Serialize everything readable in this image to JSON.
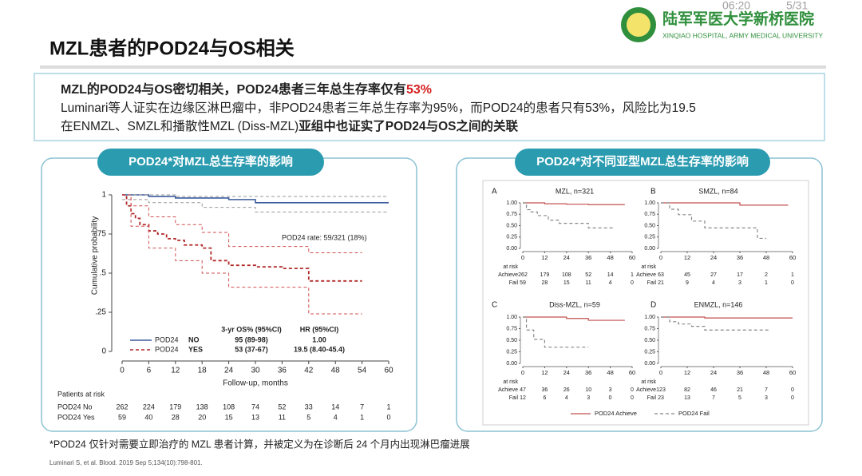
{
  "header": {
    "time": "06:20",
    "page": "5/31",
    "title": "MZL患者的POD24与OS相关",
    "logo_name": "陆军军医大学新桥医院",
    "logo_sub": "XINQIAO HOSPITAL, ARMY MEDICAL UNIVERSITY"
  },
  "summary": {
    "lead": "MZL的POD24与OS密切相关，POD24患者三年总生存率仅有",
    "lead_highlight": "53%",
    "line2": "Luminari等人证实在边缘区淋巴瘤中，非POD24患者三年总生存率为95%，而POD24的患者只有53%，风险比为19.5",
    "line3_a": "在ENMZL、SMZL和播散性MZL (Diss-MZL)",
    "line3_b": "亚组中也证实了POD24与OS之间的关联"
  },
  "left_panel": {
    "title": "POD24*对MZL总生存率的影响",
    "chart": {
      "type": "line",
      "y_label": "Cumulative probability",
      "x_label": "Follow-up, months",
      "annotation": "POD24 rate: 59/321 (18%)",
      "xlim": [
        0,
        60
      ],
      "xticks": [
        0,
        6,
        12,
        18,
        24,
        30,
        36,
        42,
        48,
        54,
        60
      ],
      "ylim": [
        0,
        1
      ],
      "yticks": [
        0,
        {
          "value": 0.25,
          "label": ".25"
        },
        {
          "value": 0.5,
          "label": ".5"
        },
        {
          "value": 0.75,
          "label": ".75"
        },
        1
      ],
      "series": [
        {
          "color": "#3b5b9e",
          "width": 1.6,
          "x": [
            0,
            6,
            6,
            12,
            12,
            24,
            24,
            30,
            30,
            60
          ],
          "y": [
            1,
            1,
            0.99,
            0.99,
            0.98,
            0.98,
            0.97,
            0.97,
            0.95,
            0.95
          ]
        },
        {
          "color": "#999999",
          "dash": true,
          "width": 1,
          "x": [
            0,
            12,
            12,
            60
          ],
          "y": [
            1,
            1,
            0.99,
            0.99
          ]
        },
        {
          "color": "#999999",
          "dash": true,
          "width": 1,
          "x": [
            0,
            6,
            6,
            18,
            18,
            30,
            30,
            60
          ],
          "y": [
            0.97,
            0.97,
            0.95,
            0.95,
            0.92,
            0.92,
            0.89,
            0.89
          ]
        },
        {
          "color": "#b22a2a",
          "dash": true,
          "width": 1.8,
          "x": [
            0,
            1,
            1,
            2,
            2,
            3,
            3,
            4,
            4,
            6,
            6,
            8,
            8,
            10,
            10,
            12,
            12,
            14,
            14,
            18,
            18,
            20,
            20,
            24,
            24,
            30,
            30,
            36,
            36,
            42,
            42,
            54
          ],
          "y": [
            1,
            1,
            0.93,
            0.93,
            0.88,
            0.88,
            0.85,
            0.85,
            0.81,
            0.81,
            0.77,
            0.77,
            0.75,
            0.75,
            0.72,
            0.72,
            0.71,
            0.71,
            0.68,
            0.68,
            0.66,
            0.66,
            0.58,
            0.58,
            0.55,
            0.55,
            0.54,
            0.54,
            0.53,
            0.53,
            0.45,
            0.45
          ]
        },
        {
          "color": "#d05050",
          "dash": true,
          "width": 1,
          "x": [
            0,
            2,
            2,
            6,
            6,
            12,
            12,
            18,
            18,
            24,
            24,
            42,
            42,
            54
          ],
          "y": [
            1,
            1,
            0.93,
            0.93,
            0.86,
            0.86,
            0.81,
            0.81,
            0.76,
            0.76,
            0.67,
            0.67,
            0.63,
            0.63
          ]
        },
        {
          "color": "#d05050",
          "dash": true,
          "width": 1,
          "x": [
            0,
            2,
            2,
            6,
            6,
            12,
            12,
            18,
            18,
            24,
            24,
            42,
            42,
            54
          ],
          "y": [
            1,
            1,
            0.8,
            0.8,
            0.66,
            0.66,
            0.58,
            0.58,
            0.5,
            0.5,
            0.41,
            0.41,
            0.24,
            0.24
          ]
        }
      ],
      "legend": {
        "headers": [
          "3-yr OS% (95%CI)",
          "HR (95%CI)"
        ],
        "rows": [
          {
            "color": "#3b5b9e",
            "dash": false,
            "name": "POD24",
            "group": "NO",
            "os": "95 (89-98)",
            "hr": "1.00"
          },
          {
            "color": "#b22a2a",
            "dash": true,
            "name": "POD24",
            "group": "YES",
            "os": "53 (37-67)",
            "hr": "19.5 (8.40-45.4)"
          }
        ]
      },
      "risk": {
        "title": "Patients at risk",
        "rows": [
          {
            "label": "POD24 No",
            "values": [
              262,
              224,
              179,
              138,
              108,
              74,
              52,
              33,
              14,
              7,
              1
            ]
          },
          {
            "label": "POD24 Yes",
            "values": [
              59,
              40,
              28,
              20,
              15,
              13,
              11,
              5,
              4,
              1,
              0
            ]
          }
        ]
      }
    }
  },
  "right_panel": {
    "title": "POD24*对不同亚型MZL总生存率的影响",
    "xlim": [
      0,
      60
    ],
    "xticks": [
      0,
      12,
      24,
      36,
      48,
      60
    ],
    "ylim": [
      0,
      1
    ],
    "yticks": [
      {
        "value": 0,
        "label": "0.00"
      },
      {
        "value": 0.25,
        "label": "0.25"
      },
      {
        "value": 0.5,
        "label": "0.50"
      },
      {
        "value": 0.75,
        "label": "0.75"
      },
      {
        "value": 1,
        "label": "1.00"
      }
    ],
    "risk_labels": [
      "at risk",
      "Achieve",
      "Fail"
    ],
    "legend": [
      {
        "name": "POD24 Achieve",
        "color": "#c0504d",
        "dash": false
      },
      {
        "name": "POD24 Fail",
        "color": "#888888",
        "dash": true
      }
    ],
    "charts": [
      {
        "type": "line",
        "letter": "A",
        "title": "MZL, n=321",
        "series": [
          {
            "color": "#c0504d",
            "x": [
              0,
              12,
              12,
              24,
              24,
              36,
              36,
              56
            ],
            "y": [
              1,
              1,
              0.98,
              0.98,
              0.97,
              0.97,
              0.96,
              0.96
            ]
          },
          {
            "color": "#888888",
            "dash": true,
            "x": [
              0,
              2,
              2,
              4,
              4,
              8,
              8,
              14,
              14,
              20,
              20,
              36,
              36,
              50
            ],
            "y": [
              1,
              1,
              0.85,
              0.85,
              0.8,
              0.8,
              0.72,
              0.72,
              0.62,
              0.62,
              0.55,
              0.55,
              0.45,
              0.45
            ]
          }
        ],
        "achieve": [
          262,
          179,
          108,
          52,
          14,
          1
        ],
        "fail": [
          59,
          28,
          15,
          11,
          4,
          0
        ]
      },
      {
        "type": "line",
        "letter": "B",
        "title": "SMZL, n=84",
        "series": [
          {
            "color": "#c0504d",
            "x": [
              0,
              36,
              36,
              58
            ],
            "y": [
              1,
              1,
              0.95,
              0.95
            ]
          },
          {
            "color": "#888888",
            "dash": true,
            "x": [
              0,
              4,
              4,
              8,
              8,
              14,
              14,
              20,
              20,
              44,
              44,
              48
            ],
            "y": [
              1,
              1,
              0.86,
              0.86,
              0.74,
              0.74,
              0.6,
              0.6,
              0.45,
              0.45,
              0.22,
              0.22
            ]
          }
        ],
        "achieve": [
          63,
          45,
          27,
          17,
          2,
          1
        ],
        "fail": [
          21,
          9,
          4,
          3,
          1,
          0
        ]
      },
      {
        "type": "line",
        "letter": "C",
        "title": "Diss-MZL, n=59",
        "series": [
          {
            "color": "#c0504d",
            "x": [
              0,
              24,
              24,
              36,
              36,
              56
            ],
            "y": [
              1,
              1,
              0.97,
              0.97,
              0.93,
              0.93
            ]
          },
          {
            "color": "#888888",
            "dash": true,
            "x": [
              0,
              2,
              2,
              6,
              6,
              12,
              12,
              36
            ],
            "y": [
              1,
              1,
              0.72,
              0.72,
              0.52,
              0.52,
              0.35,
              0.35
            ]
          }
        ],
        "achieve": [
          47,
          36,
          26,
          10,
          3,
          0
        ],
        "fail": [
          12,
          6,
          4,
          3,
          0,
          0
        ]
      },
      {
        "type": "line",
        "letter": "D",
        "title": "ENMZL, n=146",
        "series": [
          {
            "color": "#c0504d",
            "x": [
              0,
              20,
              20,
              60
            ],
            "y": [
              1,
              1,
              0.98,
              0.98
            ]
          },
          {
            "color": "#888888",
            "dash": true,
            "x": [
              0,
              4,
              4,
              8,
              8,
              14,
              14,
              20,
              20,
              50
            ],
            "y": [
              1,
              1,
              0.9,
              0.9,
              0.85,
              0.85,
              0.8,
              0.8,
              0.72,
              0.72
            ]
          }
        ],
        "achieve": [
          123,
          82,
          46,
          21,
          7,
          0
        ],
        "fail": [
          23,
          13,
          7,
          5,
          3,
          0
        ]
      }
    ]
  },
  "footnote": "*POD24 仅针对需要立即治疗的 MZL 患者计算，并被定义为在诊断后 24 个月内出现淋巴瘤进展",
  "reference": "Luminari S, et al. Blood. 2019 Sep 5;134(10):798-801."
}
